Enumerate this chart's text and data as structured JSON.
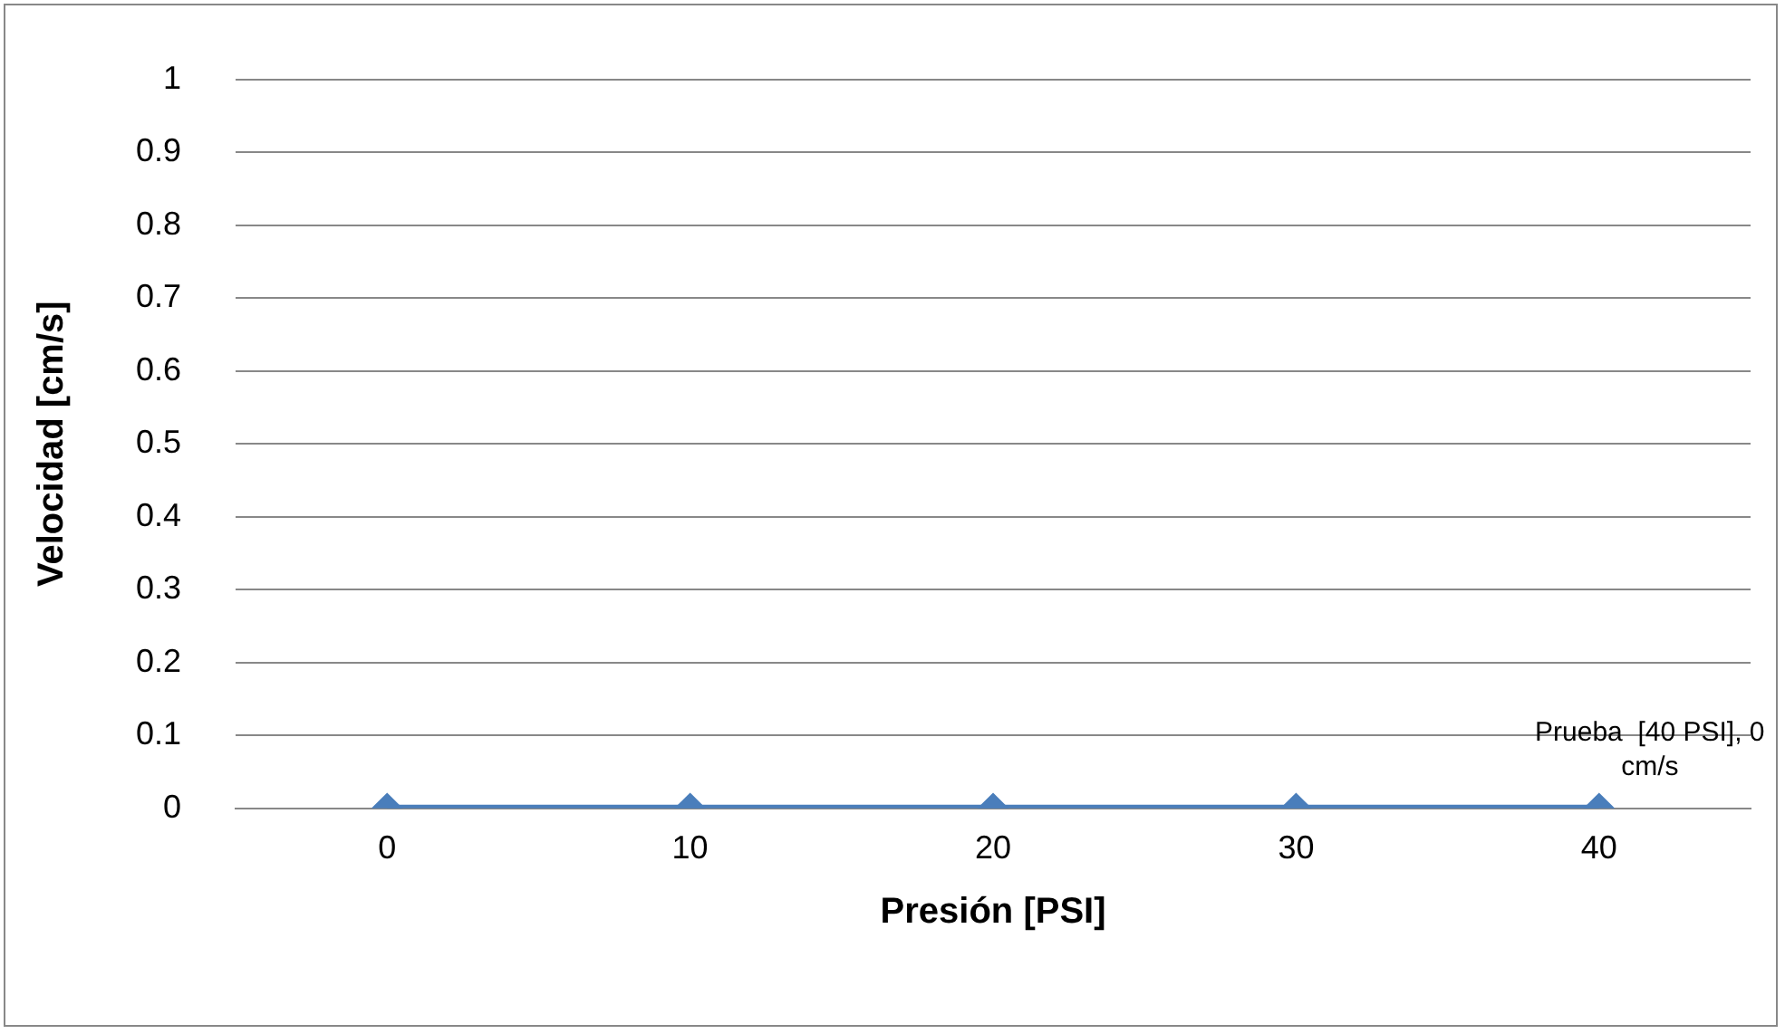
{
  "chart_data": {
    "type": "line",
    "xlabel": "Presión [PSI]",
    "ylabel": "Velocidad [cm/s]",
    "categories": [
      "0",
      "10",
      "20",
      "30",
      "40"
    ],
    "series": [
      {
        "color": "#4a7ebb",
        "values": [
          0,
          0,
          0,
          0,
          0
        ]
      }
    ],
    "ylim": [
      0,
      1
    ],
    "yticks": [
      0,
      0.1,
      0.2,
      0.3,
      0.4,
      0.5,
      0.6,
      0.7,
      0.8,
      0.9,
      1
    ],
    "grid": "y",
    "legend": false,
    "marker": "diamond",
    "line_style": "solid",
    "annotations": [
      {
        "text": "Prueba  [40 PSI], 0 cm/s",
        "x": "40",
        "y": 0
      }
    ]
  }
}
